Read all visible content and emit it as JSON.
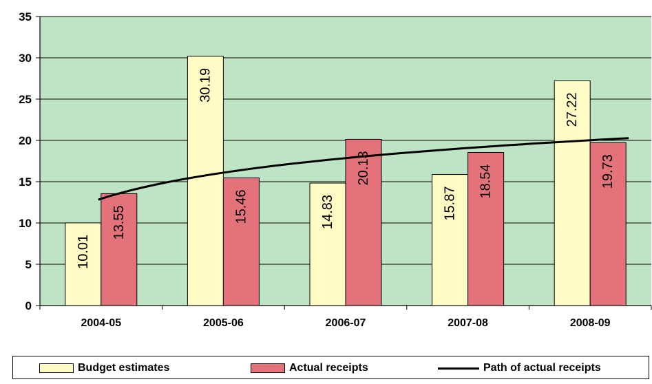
{
  "chart_data": {
    "type": "bar",
    "categories": [
      "2004-05",
      "2005-06",
      "2006-07",
      "2007-08",
      "2008-09"
    ],
    "series": [
      {
        "name": "Budget estimates",
        "values": [
          10.01,
          30.19,
          14.83,
          15.87,
          27.22
        ],
        "color": "#fffbc4"
      },
      {
        "name": "Actual receipts",
        "values": [
          13.55,
          15.46,
          20.13,
          18.54,
          19.73
        ],
        "color": "#e3727a"
      }
    ],
    "line_series": {
      "name": "Path of actual receipts",
      "color": "#000000"
    },
    "ylim": [
      0,
      35
    ],
    "yticks": [
      0,
      5,
      10,
      15,
      20,
      25,
      30,
      35
    ],
    "title": "",
    "xlabel": "",
    "ylabel": "",
    "grid": true,
    "plot_background": "#bfe3c5",
    "legend_position": "bottom"
  }
}
